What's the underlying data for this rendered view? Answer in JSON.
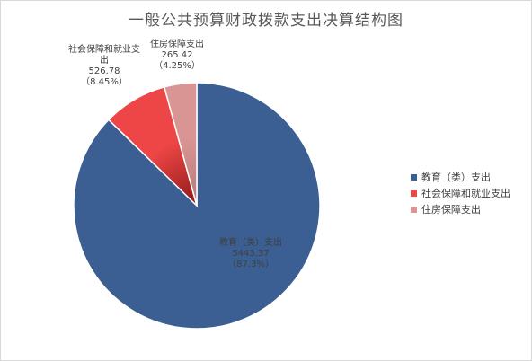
{
  "chart_data": {
    "type": "pie",
    "title": "一般公共预算财政拨款支出决算结构图",
    "slices": [
      {
        "name": "教育（类）支出",
        "value": 5443.37,
        "percent": "87.3%",
        "label_name": "教育（类）支出",
        "label_value": "5443.37",
        "label_percent": "（87.3%）",
        "color": "#3b5f92",
        "color_dark": "#2a4a78"
      },
      {
        "name": "社会保障和就业支出",
        "value": 526.78,
        "percent": "8.45%",
        "label_name": "社会保障和就业支\n出",
        "label_value": "526.78",
        "label_percent": "（8.45%）",
        "color": "#ee4646",
        "color_dark": "#8f1818"
      },
      {
        "name": "住房保障支出",
        "value": 265.42,
        "percent": "4.25%",
        "label_name": "住房保障支出",
        "label_value": "265.42",
        "label_percent": "（4.25%）",
        "color": "#d99593",
        "color_dark": "#b57a78"
      }
    ],
    "legend_position": "right"
  }
}
